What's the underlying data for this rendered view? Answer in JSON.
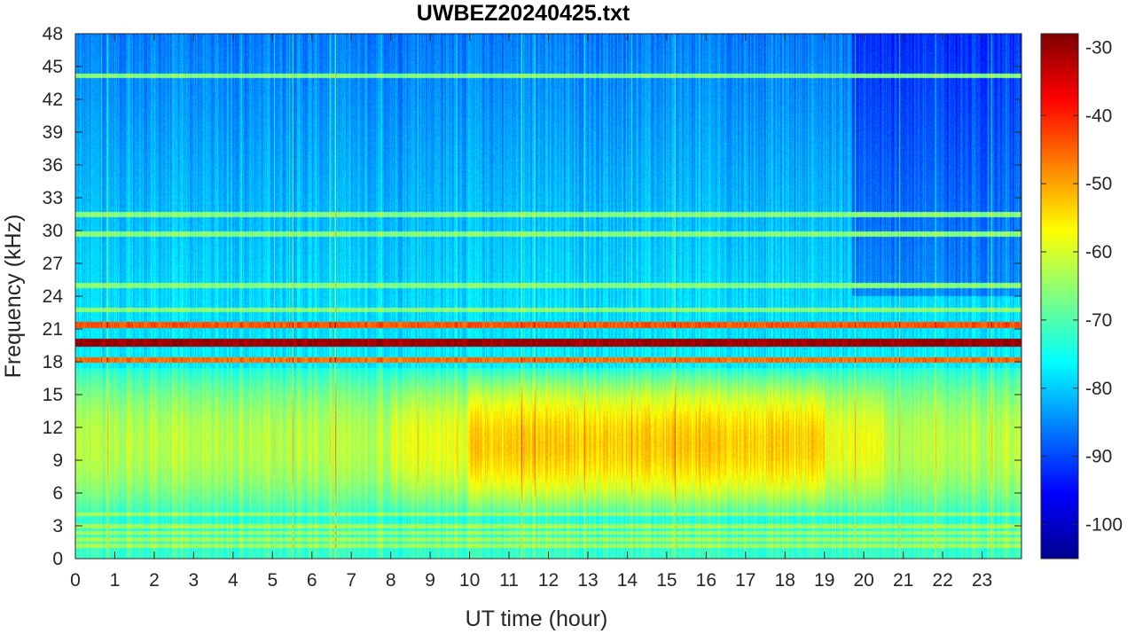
{
  "chart_data": {
    "type": "heatmap",
    "title": "UWBEZ20240425.txt",
    "xlabel": "UT time (hour)",
    "ylabel": "Frequency (kHz)",
    "xlim": [
      0,
      24
    ],
    "ylim": [
      0,
      48
    ],
    "x_ticks": [
      0,
      1,
      2,
      3,
      4,
      5,
      6,
      7,
      8,
      9,
      10,
      11,
      12,
      13,
      14,
      15,
      16,
      17,
      18,
      19,
      20,
      21,
      22,
      23
    ],
    "y_ticks": [
      0,
      3,
      6,
      9,
      12,
      15,
      18,
      21,
      24,
      27,
      30,
      33,
      36,
      39,
      42,
      45,
      48
    ],
    "colorbar": {
      "colormap": "jet",
      "clim": [
        -105,
        -28
      ],
      "ticks": [
        -30,
        -40,
        -50,
        -60,
        -70,
        -80,
        -90,
        -100
      ]
    },
    "features": {
      "strong_carriers_khz": [
        19.8,
        21.4,
        18.2
      ],
      "weak_carriers_khz": [
        44.2,
        31.5,
        25.0,
        29.7,
        22.8
      ],
      "low_freq_bands_khz": [
        1.2,
        1.8,
        2.4,
        3.0,
        4.1
      ],
      "broadband_emission": {
        "freq_range_khz": [
          5,
          17
        ],
        "peak_hours": [
          10,
          19
        ],
        "peak_level": -52
      }
    }
  }
}
